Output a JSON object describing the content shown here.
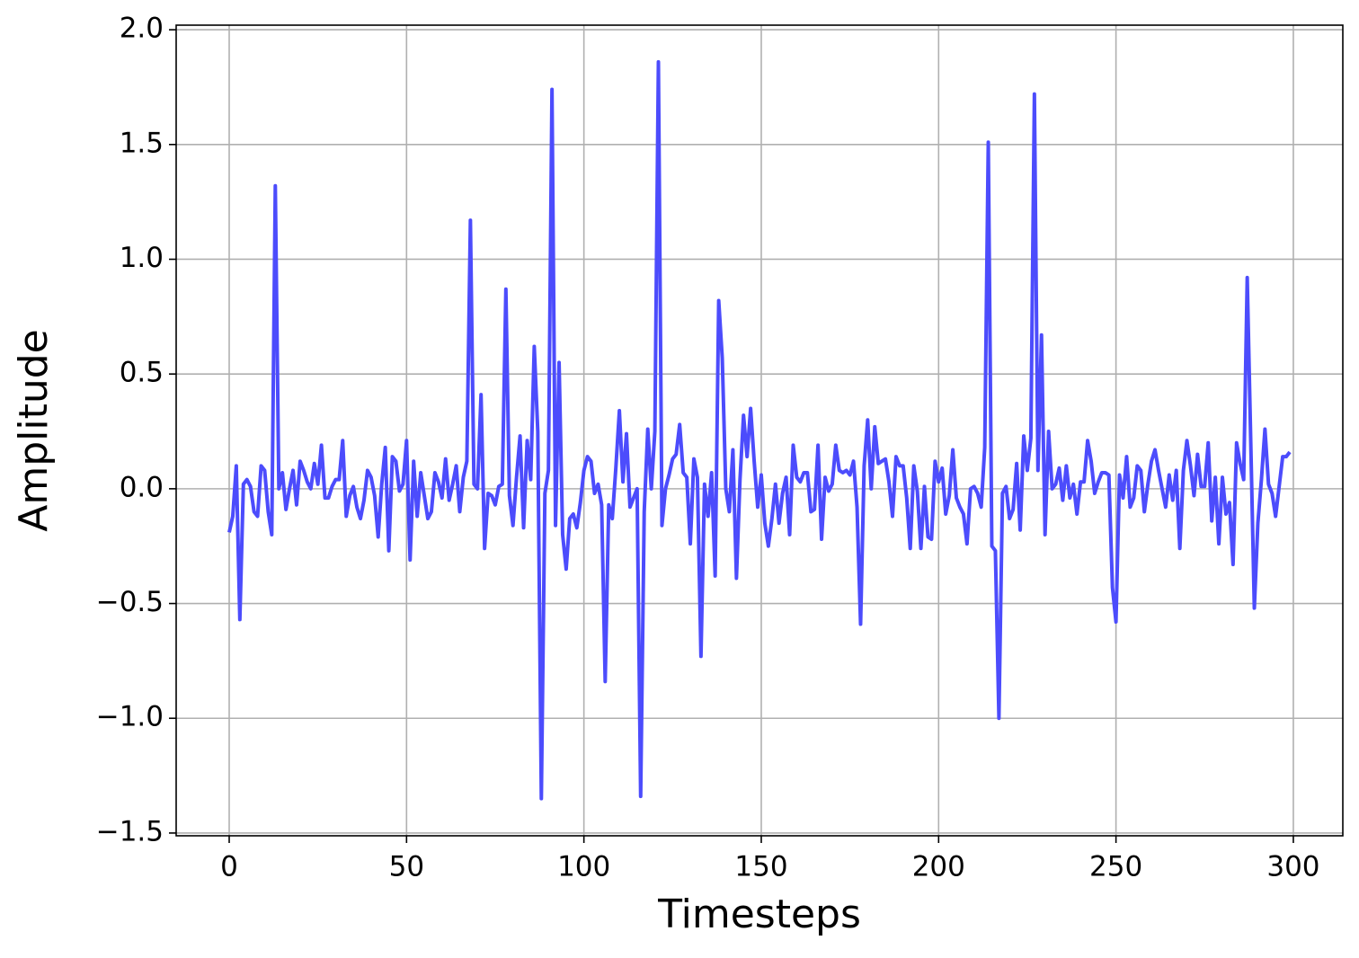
{
  "chart_data": {
    "type": "line",
    "x_label": "Timesteps",
    "y_label": "Amplitude",
    "color": "#4c4cfc",
    "grid": true,
    "xlim": [
      -14.95,
      313.95
    ],
    "ylim": [
      -1.512,
      2.02
    ],
    "xticks": [
      0,
      50,
      100,
      150,
      200,
      250,
      300
    ],
    "yticks": [
      {
        "value": -1.5,
        "label": "−1.5"
      },
      {
        "value": -1.0,
        "label": "−1.0"
      },
      {
        "value": -0.5,
        "label": "−0.5"
      },
      {
        "value": 0,
        "label": "0.0"
      },
      0.5,
      {
        "value": 1.0,
        "label": "1.0"
      },
      1.5,
      {
        "value": 2.0,
        "label": "2.0"
      }
    ],
    "x": [
      0,
      1,
      2,
      3,
      4,
      5,
      6,
      7,
      8,
      9,
      10,
      11,
      12,
      13,
      14,
      15,
      16,
      17,
      18,
      19,
      20,
      21,
      22,
      23,
      24,
      25,
      26,
      27,
      28,
      29,
      30,
      31,
      32,
      33,
      34,
      35,
      36,
      37,
      38,
      39,
      40,
      41,
      42,
      43,
      44,
      45,
      46,
      47,
      48,
      49,
      50,
      51,
      52,
      53,
      54,
      55,
      56,
      57,
      58,
      59,
      60,
      61,
      62,
      63,
      64,
      65,
      66,
      67,
      68,
      69,
      70,
      71,
      72,
      73,
      74,
      75,
      76,
      77,
      78,
      79,
      80,
      81,
      82,
      83,
      84,
      85,
      86,
      87,
      88,
      89,
      90,
      91,
      92,
      93,
      94,
      95,
      96,
      97,
      98,
      99,
      100,
      101,
      102,
      103,
      104,
      105,
      106,
      107,
      108,
      109,
      110,
      111,
      112,
      113,
      114,
      115,
      116,
      117,
      118,
      119,
      120,
      121,
      122,
      123,
      124,
      125,
      126,
      127,
      128,
      129,
      130,
      131,
      132,
      133,
      134,
      135,
      136,
      137,
      138,
      139,
      140,
      141,
      142,
      143,
      144,
      145,
      146,
      147,
      148,
      149,
      150,
      151,
      152,
      153,
      154,
      155,
      156,
      157,
      158,
      159,
      160,
      161,
      162,
      163,
      164,
      165,
      166,
      167,
      168,
      169,
      170,
      171,
      172,
      173,
      174,
      175,
      176,
      177,
      178,
      179,
      180,
      181,
      182,
      183,
      184,
      185,
      186,
      187,
      188,
      189,
      190,
      191,
      192,
      193,
      194,
      195,
      196,
      197,
      198,
      199,
      200,
      201,
      202,
      203,
      204,
      205,
      206,
      207,
      208,
      209,
      210,
      211,
      212,
      213,
      214,
      215,
      216,
      217,
      218,
      219,
      220,
      221,
      222,
      223,
      224,
      225,
      226,
      227,
      228,
      229,
      230,
      231,
      232,
      233,
      234,
      235,
      236,
      237,
      238,
      239,
      240,
      241,
      242,
      243,
      244,
      245,
      246,
      247,
      248,
      249,
      250,
      251,
      252,
      253,
      254,
      255,
      256,
      257,
      258,
      259,
      260,
      261,
      262,
      263,
      264,
      265,
      266,
      267,
      268,
      269,
      270,
      271,
      272,
      273,
      274,
      275,
      276,
      277,
      278,
      279,
      280,
      281,
      282,
      283,
      284,
      285,
      286,
      287,
      288,
      289,
      290,
      291,
      292,
      293,
      294,
      295,
      296,
      297,
      298,
      299
    ],
    "values": [
      -0.19,
      -0.12,
      0.1,
      -0.57,
      0.02,
      0.04,
      0.01,
      -0.1,
      -0.12,
      0.1,
      0.08,
      -0.1,
      -0.2,
      1.32,
      0.0,
      0.07,
      -0.09,
      0.0,
      0.08,
      -0.07,
      0.12,
      0.08,
      0.03,
      0.0,
      0.11,
      0.02,
      0.19,
      -0.04,
      -0.04,
      0.01,
      0.04,
      0.04,
      0.21,
      -0.12,
      -0.03,
      0.01,
      -0.08,
      -0.13,
      -0.05,
      0.08,
      0.05,
      -0.03,
      -0.21,
      0.02,
      0.18,
      -0.27,
      0.14,
      0.12,
      -0.01,
      0.02,
      0.21,
      -0.31,
      0.12,
      -0.12,
      0.07,
      -0.03,
      -0.13,
      -0.1,
      0.07,
      0.03,
      -0.04,
      0.13,
      -0.05,
      0.02,
      0.1,
      -0.1,
      0.05,
      0.12,
      1.17,
      0.02,
      0.0,
      0.41,
      -0.26,
      -0.02,
      -0.03,
      -0.07,
      0.01,
      0.02,
      0.87,
      -0.03,
      -0.16,
      0.05,
      0.23,
      -0.17,
      0.21,
      0.04,
      0.62,
      0.25,
      -1.35,
      -0.02,
      0.08,
      1.74,
      -0.16,
      0.55,
      -0.2,
      -0.35,
      -0.13,
      -0.11,
      -0.17,
      -0.06,
      0.08,
      0.14,
      0.12,
      -0.02,
      0.02,
      -0.07,
      -0.84,
      -0.07,
      -0.13,
      0.09,
      0.34,
      0.03,
      0.24,
      -0.08,
      -0.04,
      0.0,
      -1.34,
      -0.1,
      0.26,
      0.0,
      0.25,
      1.86,
      -0.16,
      0.0,
      0.06,
      0.13,
      0.15,
      0.28,
      0.07,
      0.05,
      -0.24,
      0.13,
      0.05,
      -0.73,
      0.02,
      -0.12,
      0.07,
      -0.38,
      0.82,
      0.57,
      0.0,
      -0.1,
      0.17,
      -0.39,
      0.04,
      0.32,
      0.14,
      0.35,
      0.12,
      -0.08,
      0.06,
      -0.15,
      -0.25,
      -0.13,
      0.02,
      -0.15,
      -0.02,
      0.05,
      -0.2,
      0.19,
      0.05,
      0.03,
      0.07,
      0.07,
      -0.1,
      -0.09,
      0.19,
      -0.22,
      0.05,
      -0.01,
      0.02,
      0.19,
      0.08,
      0.07,
      0.08,
      0.06,
      0.12,
      -0.08,
      -0.59,
      0.1,
      0.3,
      0.0,
      0.27,
      0.11,
      0.12,
      0.13,
      0.03,
      -0.12,
      0.14,
      0.1,
      0.1,
      -0.04,
      -0.26,
      0.1,
      -0.01,
      -0.26,
      0.01,
      -0.21,
      -0.22,
      0.12,
      0.03,
      0.09,
      -0.11,
      -0.03,
      0.17,
      -0.04,
      -0.08,
      -0.11,
      -0.24,
      0.0,
      0.01,
      -0.02,
      -0.08,
      0.18,
      1.51,
      -0.25,
      -0.27,
      -1.0,
      -0.02,
      0.01,
      -0.13,
      -0.09,
      0.11,
      -0.18,
      0.23,
      0.08,
      0.22,
      1.72,
      0.08,
      0.67,
      -0.2,
      0.25,
      0.0,
      0.02,
      0.09,
      -0.05,
      0.1,
      -0.04,
      0.02,
      -0.11,
      0.03,
      0.03,
      0.21,
      0.12,
      -0.02,
      0.03,
      0.07,
      0.07,
      0.06,
      -0.43,
      -0.58,
      0.06,
      -0.04,
      0.14,
      -0.08,
      -0.04,
      0.1,
      0.08,
      -0.1,
      0.02,
      0.12,
      0.17,
      0.08,
      0.0,
      -0.08,
      0.06,
      -0.05,
      0.08,
      -0.26,
      0.08,
      0.21,
      0.1,
      -0.03,
      0.15,
      0.01,
      0.01,
      0.2,
      -0.14,
      0.05,
      -0.24,
      0.05,
      -0.11,
      -0.06,
      -0.33,
      0.2,
      0.11,
      0.04,
      0.92,
      0.2,
      -0.52,
      -0.15,
      0.04,
      0.26,
      0.02,
      -0.02,
      -0.12,
      0.01,
      0.14,
      0.14,
      0.16
    ]
  }
}
